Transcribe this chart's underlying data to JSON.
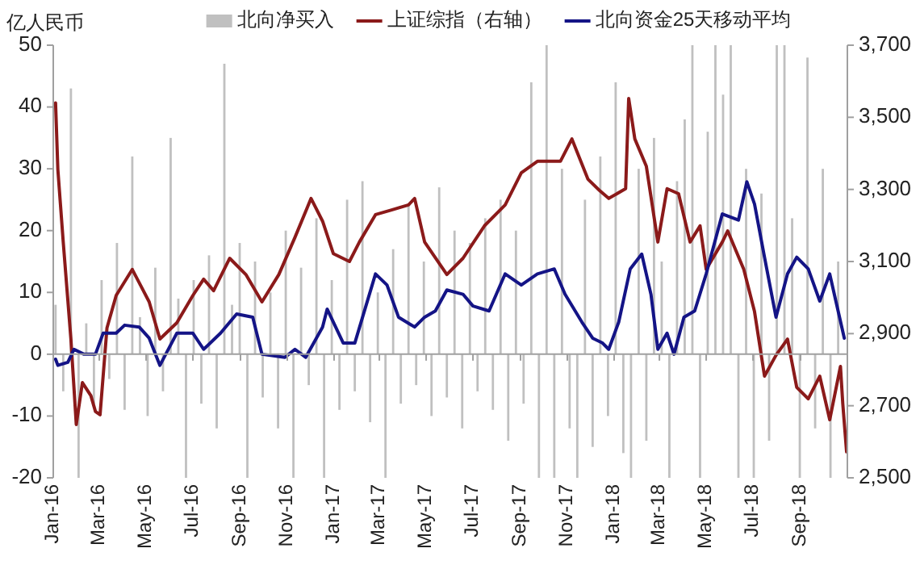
{
  "chart_data": {
    "type": "bar",
    "ylabel": "亿人民币",
    "legend": "top",
    "xlim": [
      "2016-01-01",
      "2018-11-01"
    ],
    "xticks": [
      {
        "value": "2016-01-01",
        "label": "Jan-16"
      },
      {
        "value": "2016-03-01",
        "label": "Mar-16"
      },
      {
        "value": "2016-05-01",
        "label": "May-16"
      },
      {
        "value": "2016-07-01",
        "label": "Jul-16"
      },
      {
        "value": "2016-09-01",
        "label": "Sep-16"
      },
      {
        "value": "2016-11-01",
        "label": "Nov-16"
      },
      {
        "value": "2017-01-01",
        "label": "Jan-17"
      },
      {
        "value": "2017-03-01",
        "label": "Mar-17"
      },
      {
        "value": "2017-05-01",
        "label": "May-17"
      },
      {
        "value": "2017-07-01",
        "label": "Jul-17"
      },
      {
        "value": "2017-09-01",
        "label": "Sep-17"
      },
      {
        "value": "2017-11-01",
        "label": "Nov-17"
      },
      {
        "value": "2018-01-01",
        "label": "Jan-18"
      },
      {
        "value": "2018-03-01",
        "label": "Mar-18"
      },
      {
        "value": "2018-05-01",
        "label": "May-18"
      },
      {
        "value": "2018-07-01",
        "label": "Jul-18"
      },
      {
        "value": "2018-09-01",
        "label": "Sep-18"
      }
    ],
    "ylim": [
      -20,
      50
    ],
    "yticks": [
      -20,
      -10,
      0,
      10,
      20,
      30,
      40,
      50
    ],
    "y2lim": [
      2500,
      3700
    ],
    "y2ticks": [
      {
        "value": 2500,
        "label": "2,500"
      },
      {
        "value": 2700,
        "label": "2,700"
      },
      {
        "value": 2900,
        "label": "2,900"
      },
      {
        "value": 3100,
        "label": "3,100"
      },
      {
        "value": 3300,
        "label": "3,300"
      },
      {
        "value": 3500,
        "label": "3,500"
      },
      {
        "value": 3700,
        "label": "3,700"
      }
    ],
    "series": [
      {
        "name": "北向净买入",
        "color": "#c0c0c0",
        "x": [
          "2016-01-04",
          "2016-01-14",
          "2016-01-24",
          "2016-02-03",
          "2016-02-13",
          "2016-02-23",
          "2016-03-04",
          "2016-03-14",
          "2016-03-24",
          "2016-04-03",
          "2016-04-13",
          "2016-04-23",
          "2016-05-03",
          "2016-05-13",
          "2016-05-23",
          "2016-06-02",
          "2016-06-12",
          "2016-06-22",
          "2016-07-02",
          "2016-07-12",
          "2016-07-22",
          "2016-08-01",
          "2016-08-11",
          "2016-08-21",
          "2016-08-31",
          "2016-09-10",
          "2016-09-20",
          "2016-09-30",
          "2016-10-10",
          "2016-10-20",
          "2016-10-30",
          "2016-11-09",
          "2016-11-19",
          "2016-11-29",
          "2016-12-09",
          "2016-12-19",
          "2016-12-29",
          "2017-01-08",
          "2017-01-18",
          "2017-01-28",
          "2017-02-07",
          "2017-02-17",
          "2017-02-27",
          "2017-03-09",
          "2017-03-19",
          "2017-03-29",
          "2017-04-08",
          "2017-04-18",
          "2017-04-28",
          "2017-05-08",
          "2017-05-18",
          "2017-05-28",
          "2017-06-07",
          "2017-06-17",
          "2017-06-27",
          "2017-07-07",
          "2017-07-17",
          "2017-07-27",
          "2017-08-06",
          "2017-08-16",
          "2017-08-26",
          "2017-09-05",
          "2017-09-15",
          "2017-09-25",
          "2017-10-05",
          "2017-10-15",
          "2017-10-25",
          "2017-11-04",
          "2017-11-14",
          "2017-11-24",
          "2017-12-04",
          "2017-12-14",
          "2017-12-24",
          "2018-01-03",
          "2018-01-13",
          "2018-01-23",
          "2018-02-02",
          "2018-02-12",
          "2018-02-22",
          "2018-03-04",
          "2018-03-14",
          "2018-03-24",
          "2018-04-03",
          "2018-04-13",
          "2018-04-23",
          "2018-05-03",
          "2018-05-13",
          "2018-05-23",
          "2018-06-02",
          "2018-06-12",
          "2018-06-22",
          "2018-07-02",
          "2018-07-12",
          "2018-07-22",
          "2018-08-01",
          "2018-08-11",
          "2018-08-21",
          "2018-08-31",
          "2018-09-10",
          "2018-09-20",
          "2018-09-30",
          "2018-10-10",
          "2018-10-20"
        ],
        "values": [
          8,
          -6,
          43,
          -20,
          5,
          -8,
          12,
          -4,
          18,
          -9,
          32,
          6,
          -10,
          14,
          -6,
          35,
          9,
          -20,
          12,
          -8,
          16,
          -12,
          47,
          8,
          18,
          -20,
          15,
          -7,
          10,
          -12,
          20,
          -20,
          14,
          -5,
          22,
          -20,
          12,
          -9,
          25,
          -6,
          28,
          -11,
          10,
          -20,
          17,
          -8,
          24,
          -5,
          15,
          -10,
          27,
          -7,
          20,
          -12,
          18,
          -6,
          22,
          -9,
          25,
          -14,
          20,
          -8,
          44,
          -20,
          50,
          -20,
          30,
          -12,
          -20,
          25,
          -15,
          32,
          -10,
          44,
          -16,
          -20,
          30,
          -14,
          35,
          15,
          -20,
          28,
          38,
          50,
          -20,
          36,
          50,
          42,
          50,
          -20,
          30,
          -20,
          26,
          -14,
          50,
          50,
          22,
          -20,
          48,
          -12,
          30,
          -20,
          15
        ]
      },
      {
        "name": "上证综指（右轴）",
        "type": "line",
        "axis": "y2",
        "color": "#8b1a1a",
        "x": [
          "2016-01-04",
          "2016-01-07",
          "2016-01-14",
          "2016-01-24",
          "2016-01-31",
          "2016-02-08",
          "2016-02-19",
          "2016-02-25",
          "2016-03-02",
          "2016-03-11",
          "2016-03-23",
          "2016-04-13",
          "2016-04-24",
          "2016-05-05",
          "2016-05-19",
          "2016-06-10",
          "2016-07-01",
          "2016-07-15",
          "2016-07-28",
          "2016-08-18",
          "2016-09-08",
          "2016-09-29",
          "2016-10-21",
          "2016-11-11",
          "2016-12-02",
          "2016-12-17",
          "2016-12-31",
          "2017-01-21",
          "2017-02-03",
          "2017-02-24",
          "2017-03-17",
          "2017-04-08",
          "2017-04-16",
          "2017-04-29",
          "2017-05-28",
          "2017-06-18",
          "2017-07-16",
          "2017-08-12",
          "2017-09-02",
          "2017-09-23",
          "2017-10-23",
          "2017-11-07",
          "2017-11-28",
          "2017-12-13",
          "2017-12-25",
          "2018-01-16",
          "2018-01-20",
          "2018-01-28",
          "2018-02-12",
          "2018-02-27",
          "2018-03-11",
          "2018-03-26",
          "2018-04-10",
          "2018-04-23",
          "2018-05-01",
          "2018-05-22",
          "2018-05-29",
          "2018-06-19",
          "2018-07-03",
          "2018-07-16",
          "2018-07-31",
          "2018-08-15",
          "2018-08-27",
          "2018-09-11",
          "2018-09-26",
          "2018-10-09",
          "2018-10-23",
          "2018-10-26",
          "2018-10-31"
        ],
        "values": [
          3540,
          3355,
          3154,
          2885,
          2648,
          2764,
          2728,
          2684,
          2675,
          2916,
          3006,
          3078,
          3033,
          2988,
          2885,
          2930,
          3006,
          3051,
          3019,
          3109,
          3064,
          2988,
          3064,
          3167,
          3275,
          3212,
          3122,
          3100,
          3154,
          3230,
          3243,
          3257,
          3275,
          3154,
          3064,
          3109,
          3199,
          3257,
          3346,
          3378,
          3378,
          3440,
          3328,
          3297,
          3275,
          3302,
          3552,
          3440,
          3364,
          3154,
          3302,
          3288,
          3154,
          3199,
          3078,
          3154,
          3185,
          3078,
          2961,
          2782,
          2840,
          2885,
          2751,
          2719,
          2782,
          2661,
          2809,
          2706,
          2572
        ]
      },
      {
        "name": "北向资金25天移动平均",
        "type": "line",
        "color": "#141486",
        "x": [
          "2016-01-04",
          "2016-01-07",
          "2016-01-20",
          "2016-01-28",
          "2016-02-10",
          "2016-02-25",
          "2016-03-06",
          "2016-03-23",
          "2016-04-03",
          "2016-04-22",
          "2016-05-05",
          "2016-05-19",
          "2016-06-10",
          "2016-07-01",
          "2016-07-15",
          "2016-08-06",
          "2016-08-27",
          "2016-09-17",
          "2016-09-29",
          "2016-10-29",
          "2016-11-11",
          "2016-11-25",
          "2016-12-17",
          "2016-12-23",
          "2017-01-13",
          "2017-01-28",
          "2017-02-24",
          "2017-03-11",
          "2017-03-26",
          "2017-04-16",
          "2017-04-29",
          "2017-05-13",
          "2017-05-28",
          "2017-06-18",
          "2017-07-01",
          "2017-07-22",
          "2017-08-12",
          "2017-09-02",
          "2017-09-23",
          "2017-10-15",
          "2017-10-29",
          "2017-11-20",
          "2017-12-04",
          "2017-12-17",
          "2017-12-25",
          "2018-01-07",
          "2018-01-22",
          "2018-02-06",
          "2018-02-18",
          "2018-02-27",
          "2018-03-11",
          "2018-03-20",
          "2018-04-02",
          "2018-04-16",
          "2018-05-01",
          "2018-05-22",
          "2018-06-12",
          "2018-06-23",
          "2018-07-03",
          "2018-07-16",
          "2018-07-31",
          "2018-08-15",
          "2018-08-27",
          "2018-09-11",
          "2018-09-26",
          "2018-10-09",
          "2018-10-17",
          "2018-10-28"
        ],
        "values": [
          -0.8,
          -1.8,
          -1.3,
          0.8,
          0,
          0,
          3.4,
          3.4,
          4.7,
          4.4,
          2.6,
          -1.8,
          3.4,
          3.4,
          0.8,
          3.4,
          6.5,
          6,
          0,
          -0.5,
          0.8,
          -0.5,
          4.4,
          7.3,
          1.8,
          1.8,
          13,
          11.2,
          6,
          4.4,
          6,
          7,
          10.4,
          9.7,
          7.8,
          7,
          13,
          11.2,
          13,
          13.8,
          9.7,
          5.2,
          2.6,
          1.8,
          0.8,
          5.2,
          13.8,
          16.2,
          9.7,
          0.8,
          3.4,
          0,
          6,
          7,
          13,
          22.7,
          21.7,
          27.9,
          24.3,
          15.7,
          6,
          13,
          15.7,
          13.8,
          8.6,
          13,
          8.6,
          2.6
        ]
      }
    ]
  }
}
